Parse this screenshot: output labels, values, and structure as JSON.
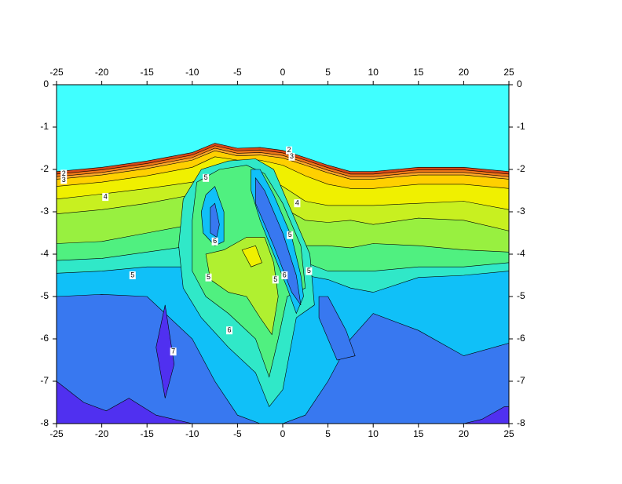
{
  "chart_data": {
    "type": "contour",
    "xlim": [
      -25,
      25
    ],
    "ylim": [
      -8,
      0
    ],
    "xticks": [
      -25,
      -20,
      -15,
      -10,
      -5,
      0,
      5,
      10,
      15,
      20,
      25
    ],
    "yticks": [
      0,
      -1,
      -2,
      -3,
      -4,
      -5,
      -6,
      -7,
      -8
    ],
    "background": "#40ffff",
    "band_x": [
      -25,
      -20,
      -15,
      -10,
      -7.5,
      -5,
      -2.5,
      0,
      2.5,
      5,
      7.5,
      10,
      15,
      20,
      25
    ],
    "bands": [
      {
        "color": "#d84818",
        "y": [
          -2.05,
          -1.95,
          -1.8,
          -1.6,
          -1.38,
          -1.5,
          -1.48,
          -1.55,
          -1.72,
          -1.9,
          -2.05,
          -2.05,
          -1.95,
          -1.95,
          -2.05
        ]
      },
      {
        "color": "#f07818",
        "y": [
          -2.11,
          -2.01,
          -1.86,
          -1.66,
          -1.44,
          -1.56,
          -1.54,
          -1.61,
          -1.78,
          -1.96,
          -2.11,
          -2.11,
          -2.01,
          -2.01,
          -2.11
        ]
      },
      {
        "color": "#ffa828",
        "y": [
          -2.17,
          -2.07,
          -1.92,
          -1.72,
          -1.5,
          -1.62,
          -1.6,
          -1.67,
          -1.84,
          -2.02,
          -2.17,
          -2.17,
          -2.07,
          -2.07,
          -2.17
        ]
      },
      {
        "color": "#ffd000",
        "y": [
          -2.23,
          -2.13,
          -1.98,
          -1.78,
          -1.56,
          -1.68,
          -1.66,
          -1.73,
          -1.9,
          -2.08,
          -2.23,
          -2.23,
          -2.13,
          -2.13,
          -2.23
        ]
      },
      {
        "color": "#f0f000",
        "y": [
          -2.4,
          -2.3,
          -2.15,
          -1.95,
          -1.7,
          -1.78,
          -1.78,
          -1.9,
          -2.15,
          -2.35,
          -2.45,
          -2.45,
          -2.35,
          -2.35,
          -2.45
        ]
      },
      {
        "color": "#c8f020",
        "y": [
          -2.7,
          -2.58,
          -2.45,
          -2.3,
          -2.05,
          -2.1,
          -2.1,
          -2.4,
          -2.75,
          -2.85,
          -2.85,
          -2.85,
          -2.8,
          -2.75,
          -2.95
        ]
      },
      {
        "color": "#98f040",
        "y": [
          -3.05,
          -2.95,
          -2.8,
          -2.6,
          -2.3,
          -2.3,
          -2.3,
          -2.9,
          -3.2,
          -3.25,
          -3.2,
          -3.3,
          -3.15,
          -3.2,
          -3.45
        ]
      },
      {
        "color": "#50f080",
        "y": [
          -3.75,
          -3.7,
          -3.5,
          -3.3,
          -2.6,
          -2.5,
          -2.4,
          -3.4,
          -3.8,
          -3.8,
          -3.85,
          -3.75,
          -3.8,
          -3.9,
          -3.95
        ]
      },
      {
        "color": "#30e8c8",
        "y": [
          -4.15,
          -4.1,
          -3.95,
          -3.8,
          -3.7,
          -3.5,
          -3.3,
          -3.7,
          -4.2,
          -4.4,
          -4.4,
          -4.4,
          -4.3,
          -4.3,
          -4.2
        ]
      },
      {
        "color": "#10c0f8",
        "y": [
          -4.45,
          -4.4,
          -4.3,
          -4.3,
          -4.2,
          -4.1,
          -4.0,
          -4.2,
          -4.5,
          -4.6,
          -4.8,
          -4.9,
          -4.55,
          -4.5,
          -4.4
        ]
      },
      {
        "color": "#3878f0",
        "y": [
          -5.0,
          -4.95,
          -5.0,
          -6.0,
          -7.0,
          -7.8,
          -8.0,
          -8.0,
          -7.8,
          -7.0,
          -6.0,
          -5.4,
          -5.8,
          -6.4,
          -6.1
        ]
      }
    ],
    "regions": [
      {
        "color": "#5030f0",
        "x": [
          -25,
          -22,
          -19.5,
          -17,
          -14,
          -10,
          -25
        ],
        "y": [
          -7.0,
          -7.5,
          -7.7,
          -7.4,
          -7.8,
          -8,
          -8
        ]
      },
      {
        "color": "#5030f0",
        "x": [
          20,
          22,
          24.5,
          25,
          25
        ],
        "y": [
          -8,
          -7.9,
          -7.6,
          -7.6,
          -8
        ]
      },
      {
        "color": "#5030f0",
        "x": [
          -14,
          -13,
          -12,
          -13
        ],
        "y": [
          -6.2,
          -5.2,
          -6.6,
          -7.4
        ]
      },
      {
        "color": "#3878f0",
        "x": [
          4,
          5,
          7,
          8,
          6,
          4
        ],
        "y": [
          -5.0,
          -5.0,
          -5.8,
          -6.4,
          -6.5,
          -5.5
        ]
      },
      {
        "color": "#30e8c8",
        "x": [
          -11,
          -9,
          -6,
          -3,
          -1,
          1,
          3,
          3.5,
          1.5,
          0,
          -1.5,
          -3,
          -6,
          -9,
          -11,
          -11.5
        ],
        "y": [
          -2.7,
          -2.0,
          -1.8,
          -1.75,
          -2,
          -3,
          -4,
          -5.2,
          -5.5,
          -7.2,
          -7.6,
          -6.8,
          -6.2,
          -5.5,
          -4.8,
          -3.8
        ]
      },
      {
        "color": "#50f080",
        "x": [
          -9.5,
          -7,
          -4,
          -2,
          0,
          2,
          2.5,
          0.5,
          -0.5,
          -1.5,
          -3,
          -6,
          -8.5,
          -10,
          -10
        ],
        "y": [
          -2.3,
          -2.0,
          -1.9,
          -2.1,
          -2.8,
          -3.8,
          -4.8,
          -5.0,
          -6.0,
          -6.9,
          -6.0,
          -5.4,
          -5.0,
          -4.4,
          -3.2
        ]
      },
      {
        "color": "#b0f030",
        "x": [
          -6.5,
          -4,
          -2,
          -1,
          -0.5,
          -1.2,
          -2.5,
          -4,
          -6,
          -8,
          -8.5
        ],
        "y": [
          -3.9,
          -3.6,
          -3.6,
          -4.2,
          -5.0,
          -5.9,
          -5.5,
          -5.0,
          -4.9,
          -4.6,
          -4.0
        ]
      },
      {
        "color": "#f0f000",
        "x": [
          -4.5,
          -3,
          -2.3,
          -3.5
        ],
        "y": [
          -3.9,
          -3.8,
          -4.2,
          -4.3
        ]
      },
      {
        "color": "#10c0f8",
        "x": [
          -8.5,
          -7.5,
          -6.5,
          -6.5,
          -7.5,
          -8.8,
          -9
        ],
        "y": [
          -2.6,
          -2.4,
          -3.0,
          -3.7,
          -3.8,
          -3.5,
          -3.0
        ]
      },
      {
        "color": "#3878f0",
        "x": [
          -8,
          -7.5,
          -7,
          -7.3,
          -8
        ],
        "y": [
          -2.9,
          -2.8,
          -3.3,
          -3.6,
          -3.5
        ]
      },
      {
        "color": "#10c0f8",
        "x": [
          -3.5,
          -2.5,
          -1,
          1,
          2,
          2.3,
          1.5,
          0.5,
          -1,
          -2.5,
          -3.5
        ],
        "y": [
          -2.0,
          -2.0,
          -2.6,
          -3.6,
          -4.5,
          -5.0,
          -5.4,
          -4.8,
          -4.0,
          -3.2,
          -2.5
        ]
      },
      {
        "color": "#3878f0",
        "x": [
          -3,
          -2,
          0,
          1.5,
          2,
          1,
          -1,
          -3
        ],
        "y": [
          -2.2,
          -2.5,
          -3.5,
          -4.5,
          -5.2,
          -4.9,
          -3.8,
          -2.8
        ]
      }
    ],
    "contour_labels": [
      {
        "x": -24.2,
        "y": -2.1,
        "label": 2
      },
      {
        "x": -24.2,
        "y": -2.25,
        "label": 3
      },
      {
        "x": 0.7,
        "y": -1.55,
        "label": 2
      },
      {
        "x": 1,
        "y": -1.7,
        "label": 3
      },
      {
        "x": -19.6,
        "y": -2.65,
        "label": 4
      },
      {
        "x": 1.6,
        "y": -2.8,
        "label": 4
      },
      {
        "x": -8.5,
        "y": -2.2,
        "label": 5
      },
      {
        "x": 0.8,
        "y": -3.55,
        "label": 5
      },
      {
        "x": 2.9,
        "y": -4.4,
        "label": 5
      },
      {
        "x": -16.6,
        "y": -4.5,
        "label": 5
      },
      {
        "x": -8.2,
        "y": -4.55,
        "label": 5
      },
      {
        "x": -0.8,
        "y": -4.6,
        "label": 5
      },
      {
        "x": 0.2,
        "y": -4.5,
        "label": 6
      },
      {
        "x": -7.5,
        "y": -3.7,
        "label": 6
      },
      {
        "x": -5.9,
        "y": -5.8,
        "label": 6
      },
      {
        "x": -12.1,
        "y": -6.3,
        "label": 7
      }
    ]
  }
}
